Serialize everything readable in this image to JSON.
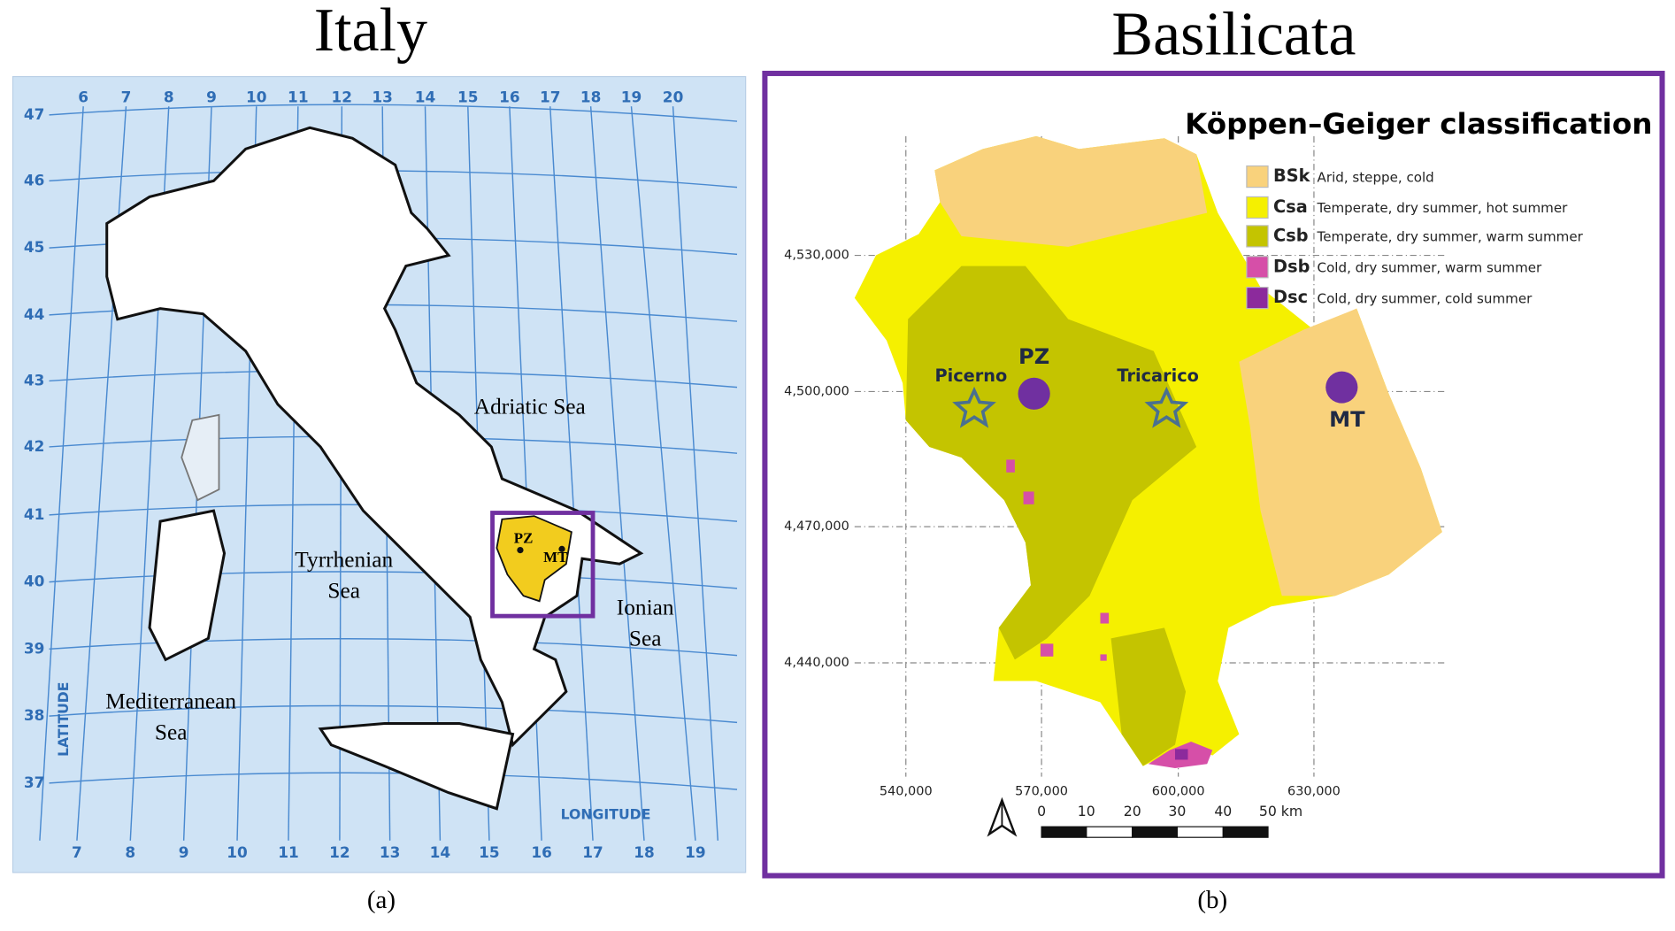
{
  "panels": [
    {
      "title": "Italy",
      "caption": "(a)",
      "longitude_top": [
        6,
        7,
        8,
        9,
        10,
        11,
        12,
        13,
        14,
        15,
        16,
        17,
        18,
        19,
        20
      ],
      "longitude_bottom": [
        7,
        8,
        9,
        10,
        11,
        12,
        13,
        14,
        15,
        16,
        17,
        18,
        19
      ],
      "latitude": [
        47,
        46,
        45,
        44,
        43,
        42,
        41,
        40,
        39,
        38,
        37
      ],
      "axis_labels": {
        "latitude": "LATITUDE",
        "longitude": "LONGITUDE"
      },
      "sea_labels": [
        "Adriatic Sea",
        "Tyrrhenian",
        "Sea",
        "Ionian",
        "Sea",
        "Mediterranean",
        "Sea"
      ],
      "region_labels": [
        "PZ",
        "MT"
      ]
    },
    {
      "title": "Basilicata",
      "caption": "(b)",
      "legend_title": "Köppen–Geiger classification",
      "legend": [
        {
          "code": "BSk",
          "description": "Arid, steppe, cold",
          "color": "#f9d27c"
        },
        {
          "code": "Csa",
          "description": "Temperate, dry summer, hot summer",
          "color": "#f5f000"
        },
        {
          "code": "Csb",
          "description": "Temperate, dry summer, warm summer",
          "color": "#c4c400"
        },
        {
          "code": "Dsb",
          "description": "Cold, dry summer, warm summer",
          "color": "#d64fa8"
        },
        {
          "code": "Dsc",
          "description": "Cold, dry summer, cold summer",
          "color": "#8c2a9c"
        }
      ],
      "northing": [
        "4,530,000",
        "4,500,000",
        "4,470,000",
        "4,440,000"
      ],
      "easting": [
        "540,000",
        "570,000",
        "600,000",
        "630,000"
      ],
      "scale_labels": [
        "0",
        "10",
        "20",
        "30",
        "40",
        "50 km"
      ],
      "places": [
        "Picerno",
        "PZ",
        "Tricarico",
        "MT"
      ]
    }
  ]
}
